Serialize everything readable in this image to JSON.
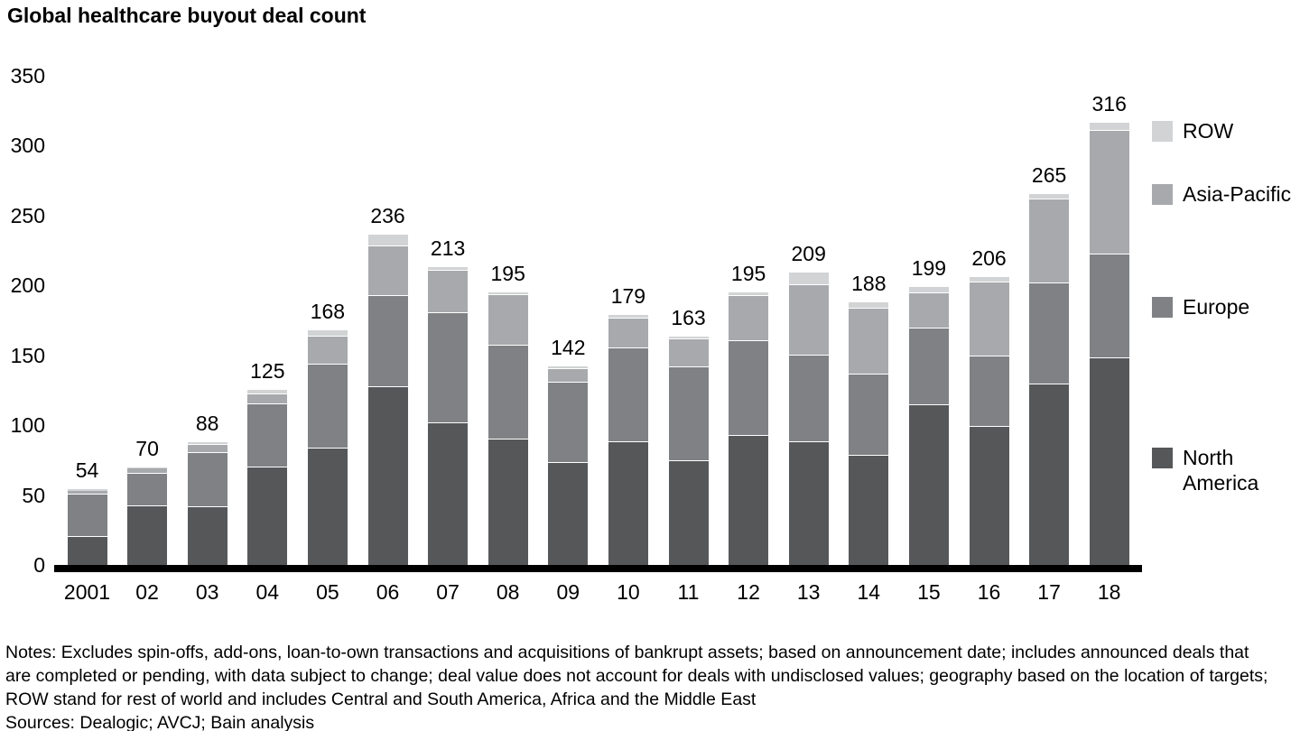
{
  "title": "Global healthcare buyout deal count",
  "chart_data": {
    "type": "bar",
    "stacked": true,
    "title": "Global healthcare buyout deal count",
    "xlabel": "",
    "ylabel": "",
    "ylim": [
      0,
      350
    ],
    "yticks": [
      0,
      50,
      100,
      150,
      200,
      250,
      300,
      350
    ],
    "grid": false,
    "legend_position": "right",
    "categories": [
      "2001",
      "02",
      "03",
      "04",
      "05",
      "06",
      "07",
      "08",
      "09",
      "10",
      "11",
      "12",
      "13",
      "14",
      "15",
      "16",
      "17",
      "18"
    ],
    "series": [
      {
        "name": "North America",
        "color": "#565759",
        "values": [
          20,
          42,
          41,
          70,
          83,
          127,
          101,
          90,
          73,
          88,
          74,
          92,
          88,
          78,
          114,
          99,
          129,
          148
        ]
      },
      {
        "name": "Europe",
        "color": "#7f8184",
        "values": [
          30,
          23,
          39,
          45,
          60,
          65,
          79,
          67,
          57,
          67,
          67,
          68,
          62,
          58,
          55,
          50,
          72,
          74
        ]
      },
      {
        "name": "Asia-Pacific",
        "color": "#a7a9ac",
        "values": [
          3,
          4,
          6,
          7,
          20,
          36,
          30,
          36,
          10,
          21,
          20,
          32,
          50,
          47,
          25,
          53,
          60,
          88
        ]
      },
      {
        "name": "ROW",
        "color": "#d1d3d4",
        "values": [
          1,
          1,
          2,
          3,
          5,
          8,
          3,
          2,
          2,
          3,
          2,
          3,
          9,
          5,
          5,
          4,
          4,
          6
        ]
      }
    ],
    "totals": [
      54,
      70,
      88,
      125,
      168,
      236,
      213,
      195,
      142,
      179,
      163,
      195,
      209,
      188,
      199,
      206,
      265,
      316
    ]
  },
  "legend": {
    "items": [
      {
        "label": "ROW",
        "color": "#d1d3d4"
      },
      {
        "label": "Asia-Pacific",
        "color": "#a7a9ac"
      },
      {
        "label": "Europe",
        "color": "#7f8184"
      },
      {
        "label": "North America",
        "color": "#565759"
      }
    ]
  },
  "notes": {
    "lines": [
      "Notes: Excludes spin-offs, add-ons, loan-to-own transactions and acquisitions of bankrupt assets; based on announcement date; includes announced deals that",
      "are completed or pending, with data subject to change; deal value does not account for deals with undisclosed values; geography based on the location of targets;",
      "ROW stand for rest of world and includes Central and South America, Africa and the Middle East",
      "Sources: Dealogic; AVCJ; Bain analysis"
    ]
  }
}
